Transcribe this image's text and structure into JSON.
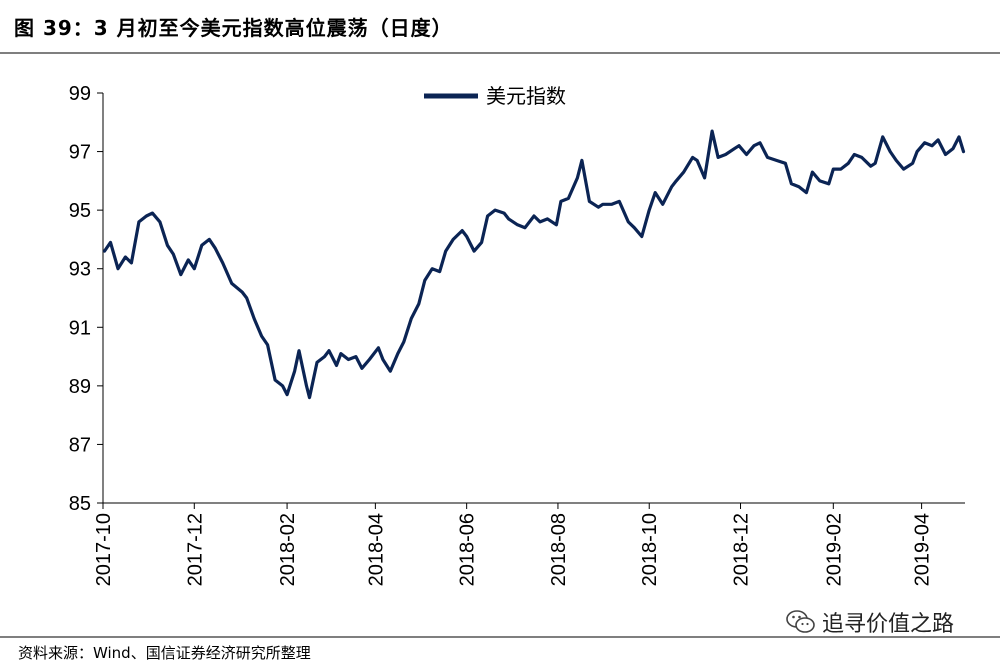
{
  "header": {
    "title": "图 39：3 月初至今美元指数高位震荡（日度）"
  },
  "footer": {
    "source": "资料来源：Wind、国信证券经济研究所整理",
    "watermark": "追寻价值之路",
    "watermark_icon": "wechat-icon"
  },
  "colors": {
    "series": "#0b2454",
    "axis": "#000000",
    "rule": "#7f7f7f"
  },
  "chart_data": {
    "type": "line",
    "title": "",
    "xlabel": "",
    "ylabel": "",
    "ylim": [
      85,
      99
    ],
    "yticks": [
      85,
      87,
      89,
      91,
      93,
      95,
      97,
      99
    ],
    "xlim": [
      "2017-10-01",
      "2019-04-30"
    ],
    "xticks": [
      "2017-10",
      "2017-12",
      "2018-02",
      "2018-04",
      "2018-06",
      "2018-08",
      "2018-10",
      "2018-12",
      "2019-02",
      "2019-04"
    ],
    "grid": false,
    "legend": "top-center",
    "series": [
      {
        "name": "美元指数",
        "x": [
          "2017-10-02",
          "2017-10-06",
          "2017-10-11",
          "2017-10-16",
          "2017-10-20",
          "2017-10-25",
          "2017-10-30",
          "2017-11-03",
          "2017-11-08",
          "2017-11-13",
          "2017-11-17",
          "2017-11-22",
          "2017-11-27",
          "2017-12-01",
          "2017-12-06",
          "2017-12-11",
          "2017-12-15",
          "2017-12-20",
          "2017-12-26",
          "2018-01-02",
          "2018-01-05",
          "2018-01-10",
          "2018-01-15",
          "2018-01-19",
          "2018-01-24",
          "2018-01-29",
          "2018-02-01",
          "2018-02-06",
          "2018-02-09",
          "2018-02-14",
          "2018-02-16",
          "2018-02-21",
          "2018-02-26",
          "2018-03-01",
          "2018-03-06",
          "2018-03-09",
          "2018-03-14",
          "2018-03-19",
          "2018-03-23",
          "2018-03-28",
          "2018-04-03",
          "2018-04-06",
          "2018-04-11",
          "2018-04-16",
          "2018-04-20",
          "2018-04-25",
          "2018-04-30",
          "2018-05-04",
          "2018-05-09",
          "2018-05-14",
          "2018-05-18",
          "2018-05-23",
          "2018-05-29",
          "2018-06-01",
          "2018-06-06",
          "2018-06-11",
          "2018-06-15",
          "2018-06-20",
          "2018-06-26",
          "2018-06-29",
          "2018-07-05",
          "2018-07-10",
          "2018-07-16",
          "2018-07-20",
          "2018-07-25",
          "2018-07-31",
          "2018-08-03",
          "2018-08-08",
          "2018-08-14",
          "2018-08-17",
          "2018-08-22",
          "2018-08-28",
          "2018-08-31",
          "2018-09-06",
          "2018-09-11",
          "2018-09-17",
          "2018-09-21",
          "2018-09-26",
          "2018-10-01",
          "2018-10-05",
          "2018-10-10",
          "2018-10-16",
          "2018-10-19",
          "2018-10-24",
          "2018-10-30",
          "2018-11-02",
          "2018-11-07",
          "2018-11-12",
          "2018-11-16",
          "2018-11-21",
          "2018-11-27",
          "2018-11-30",
          "2018-12-05",
          "2018-12-10",
          "2018-12-14",
          "2018-12-19",
          "2018-12-25",
          "2018-12-31",
          "2019-01-04",
          "2019-01-09",
          "2019-01-14",
          "2019-01-18",
          "2019-01-23",
          "2019-01-29",
          "2019-02-01",
          "2019-02-06",
          "2019-02-11",
          "2019-02-15",
          "2019-02-20",
          "2019-02-26",
          "2019-03-01",
          "2019-03-06",
          "2019-03-11",
          "2019-03-15",
          "2019-03-20",
          "2019-03-26",
          "2019-03-29",
          "2019-04-03",
          "2019-04-08",
          "2019-04-12",
          "2019-04-17",
          "2019-04-22",
          "2019-04-26",
          "2019-04-29"
        ],
        "values": [
          93.6,
          93.9,
          93.0,
          93.4,
          93.2,
          94.6,
          94.8,
          94.9,
          94.6,
          93.8,
          93.5,
          92.8,
          93.3,
          93.0,
          93.8,
          94.0,
          93.7,
          93.2,
          92.5,
          92.2,
          92.0,
          91.3,
          90.7,
          90.4,
          89.2,
          89.0,
          88.7,
          89.5,
          90.2,
          89.0,
          88.6,
          89.8,
          90.0,
          90.2,
          89.7,
          90.1,
          89.9,
          90.0,
          89.6,
          89.9,
          90.3,
          89.9,
          89.5,
          90.1,
          90.5,
          91.3,
          91.8,
          92.6,
          93.0,
          92.9,
          93.6,
          94.0,
          94.3,
          94.1,
          93.6,
          93.9,
          94.8,
          95.0,
          94.9,
          94.7,
          94.5,
          94.4,
          94.8,
          94.6,
          94.7,
          94.5,
          95.3,
          95.4,
          96.1,
          96.7,
          95.3,
          95.1,
          95.2,
          95.2,
          95.3,
          94.6,
          94.4,
          94.1,
          95.0,
          95.6,
          95.2,
          95.8,
          96.0,
          96.3,
          96.8,
          96.7,
          96.1,
          97.7,
          96.8,
          96.9,
          97.1,
          97.2,
          96.9,
          97.2,
          97.3,
          96.8,
          96.7,
          96.6,
          95.9,
          95.8,
          95.6,
          96.3,
          96.0,
          95.9,
          96.4,
          96.4,
          96.6,
          96.9,
          96.8,
          96.5,
          96.6,
          97.5,
          97.0,
          96.7,
          96.4,
          96.6,
          97.0,
          97.3,
          97.2,
          97.4,
          96.9,
          97.1,
          97.5,
          97.0
        ]
      }
    ]
  }
}
